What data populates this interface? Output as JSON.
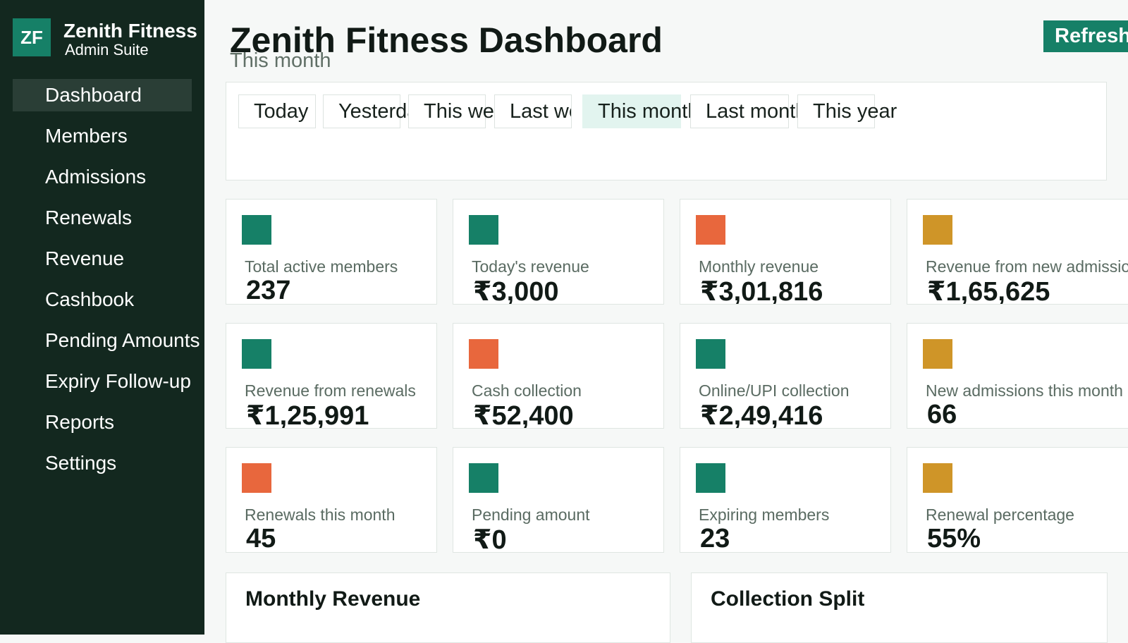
{
  "brand": {
    "logo": "ZF",
    "name": "Zenith Fitness",
    "subtitle": "Admin Suite"
  },
  "sidebar": {
    "items": [
      {
        "label": "Dashboard",
        "active": true
      },
      {
        "label": "Members"
      },
      {
        "label": "Admissions"
      },
      {
        "label": "Renewals"
      },
      {
        "label": "Revenue"
      },
      {
        "label": "Cashbook"
      },
      {
        "label": "Pending Amounts"
      },
      {
        "label": "Expiry Follow-up"
      },
      {
        "label": "Reports"
      },
      {
        "label": "Settings"
      }
    ]
  },
  "header": {
    "title": "Zenith Fitness Dashboard",
    "subtitle": "This month",
    "refresh_label": "Refresh"
  },
  "filters": {
    "selected": "This month",
    "chips": [
      "Today",
      "Yesterday",
      "This week",
      "Last week",
      "This month",
      "Last month",
      "This year"
    ]
  },
  "colors": {
    "accent": "#168067",
    "orange": "#e8673d",
    "gold": "#cf9528",
    "sidebar_bg": "#13281f"
  },
  "stats": [
    {
      "label": "Total active members",
      "value": "237",
      "color": "#168067"
    },
    {
      "label": "Today's revenue",
      "value": "₹3,000",
      "color": "#168067"
    },
    {
      "label": "Monthly revenue",
      "value": "₹3,01,816",
      "color": "#e8673d"
    },
    {
      "label": "Revenue from new admissions",
      "value": "₹1,65,625",
      "color": "#cf9528"
    },
    {
      "label": "Revenue from renewals",
      "value": "₹1,25,991",
      "color": "#168067"
    },
    {
      "label": "Cash collection",
      "value": "₹52,400",
      "color": "#e8673d"
    },
    {
      "label": "Online/UPI collection",
      "value": "₹2,49,416",
      "color": "#168067"
    },
    {
      "label": "New admissions this month",
      "value": "66",
      "color": "#cf9528"
    },
    {
      "label": "Renewals this month",
      "value": "45",
      "color": "#e8673d"
    },
    {
      "label": "Pending amount",
      "value": "₹0",
      "color": "#168067"
    },
    {
      "label": "Expiring members",
      "value": "23",
      "color": "#168067"
    },
    {
      "label": "Renewal percentage",
      "value": "55%",
      "color": "#cf9528"
    }
  ],
  "panels": {
    "monthly_revenue_title": "Monthly Revenue",
    "collection_split_title": "Collection Split"
  }
}
